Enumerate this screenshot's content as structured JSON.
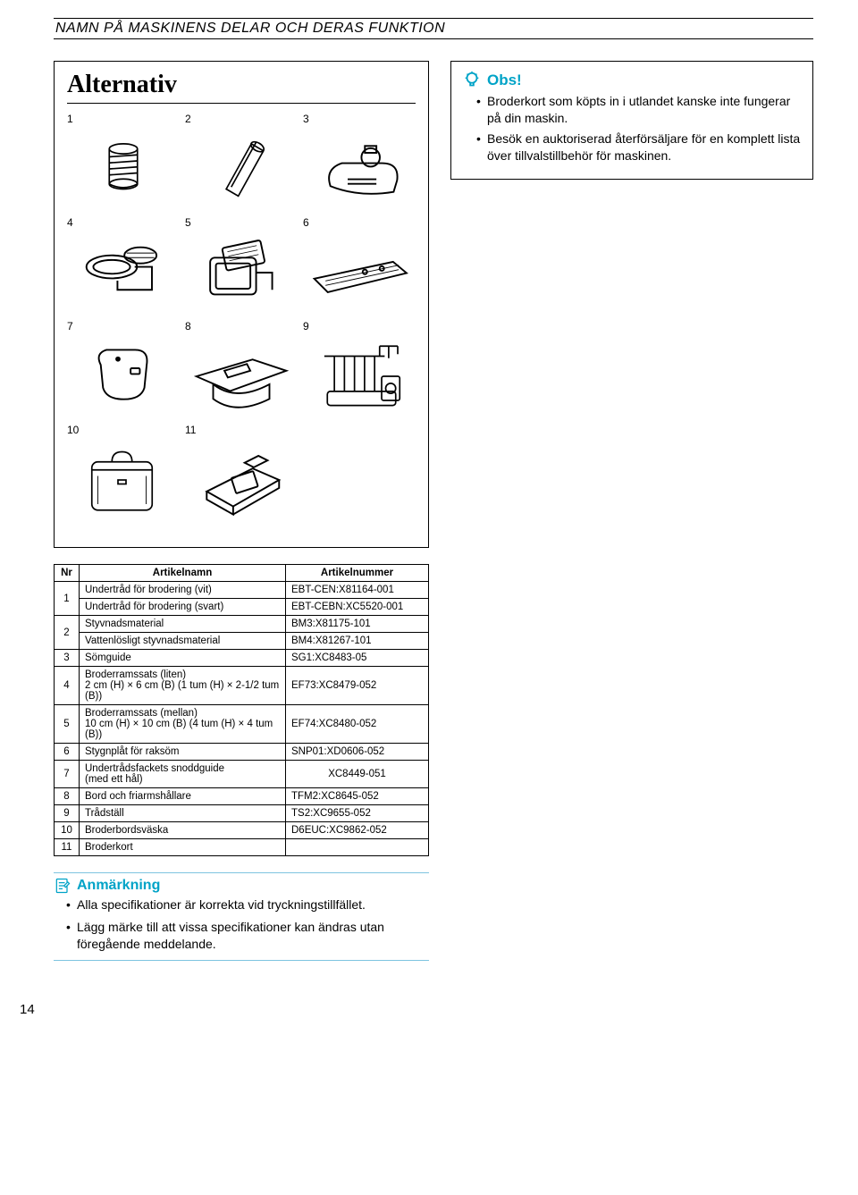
{
  "header": "NAMN PÅ MASKINENS DELAR OCH DERAS FUNKTION",
  "page_number": "14",
  "alternativ": {
    "title": "Alternativ",
    "items": [
      {
        "n": "1"
      },
      {
        "n": "2"
      },
      {
        "n": "3"
      },
      {
        "n": "4"
      },
      {
        "n": "5"
      },
      {
        "n": "6"
      },
      {
        "n": "7"
      },
      {
        "n": "8"
      },
      {
        "n": "9"
      },
      {
        "n": "10"
      },
      {
        "n": "11"
      }
    ]
  },
  "obs": {
    "title": "Obs!",
    "bullets": [
      "Broderkort som köpts in i utlandet kanske inte fungerar på din maskin.",
      "Besök en auktoriserad återförsäljare för en komplett lista över tillvalstillbehör för maskinen."
    ]
  },
  "table": {
    "headers": [
      "Nr",
      "Artikelnamn",
      "Artikelnummer"
    ],
    "rows": [
      {
        "nr": "1",
        "name": "Undertråd för brodering (vit)",
        "num": "EBT-CEN:X81164-001"
      },
      {
        "nr": "",
        "name": "Undertråd för brodering (svart)",
        "num": "EBT-CEBN:XC5520-001"
      },
      {
        "nr": "2",
        "name": "Styvnadsmaterial",
        "num": "BM3:X81175-101"
      },
      {
        "nr": "",
        "name": "Vattenlösligt styvnadsmaterial",
        "num": "BM4:X81267-101"
      },
      {
        "nr": "3",
        "name": "Sömguide",
        "num": "SG1:XC8483-05"
      },
      {
        "nr": "4",
        "name": "Broderramssats (liten)\n2 cm (H) × 6 cm (B) (1 tum (H) × 2-1/2 tum (B))",
        "num": "EF73:XC8479-052"
      },
      {
        "nr": "5",
        "name": "Broderramssats (mellan)\n10 cm (H) × 10 cm (B) (4 tum (H) × 4 tum (B))",
        "num": "EF74:XC8480-052"
      },
      {
        "nr": "6",
        "name": "Stygnplåt för raksöm",
        "num": "SNP01:XD0606-052"
      },
      {
        "nr": "7",
        "name": "Undertrådsfackets snoddguide\n(med ett hål)",
        "num": "XC8449-051"
      },
      {
        "nr": "8",
        "name": "Bord och friarmshållare",
        "num": "TFM2:XC8645-052"
      },
      {
        "nr": "9",
        "name": "Trådställ",
        "num": "TS2:XC9655-052"
      },
      {
        "nr": "10",
        "name": "Broderbordsväska",
        "num": "D6EUC:XC9862-052"
      },
      {
        "nr": "11",
        "name": "Broderkort",
        "num": ""
      }
    ],
    "rowspans": {
      "0": 2,
      "2": 2
    }
  },
  "remark": {
    "title": "Anmärkning",
    "bullets": [
      "Alla specifikationer är korrekta vid tryckningstillfället.",
      "Lägg märke till att vissa specifikationer kan ändras utan föregående meddelande."
    ]
  },
  "colors": {
    "accent": "#00a3c7",
    "rule_light": "#7ec4e0"
  }
}
